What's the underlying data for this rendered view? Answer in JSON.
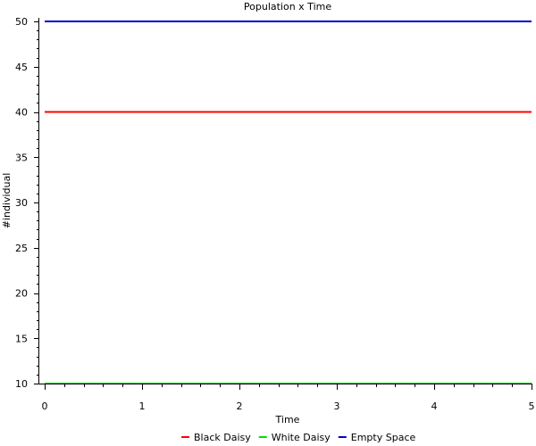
{
  "chart_data": {
    "type": "line",
    "title": "Population x Time",
    "xlabel": "Time",
    "ylabel": "#individual",
    "xlim": [
      0,
      5
    ],
    "ylim": [
      10,
      50
    ],
    "xticks": [
      0,
      1,
      2,
      3,
      4,
      5
    ],
    "yticks": [
      10,
      15,
      20,
      25,
      30,
      35,
      40,
      45,
      50
    ],
    "grid": false,
    "legend_position": "bottom",
    "series": [
      {
        "name": "Black Daisy",
        "color": "#ff0000",
        "x": [
          0,
          5
        ],
        "y": [
          40,
          40
        ]
      },
      {
        "name": "White Daisy",
        "color": "#00dd00",
        "x": [
          0,
          5
        ],
        "y": [
          10,
          10
        ]
      },
      {
        "name": "Empty Space",
        "color": "#0000cc",
        "x": [
          0,
          5
        ],
        "y": [
          50,
          50
        ]
      }
    ]
  }
}
